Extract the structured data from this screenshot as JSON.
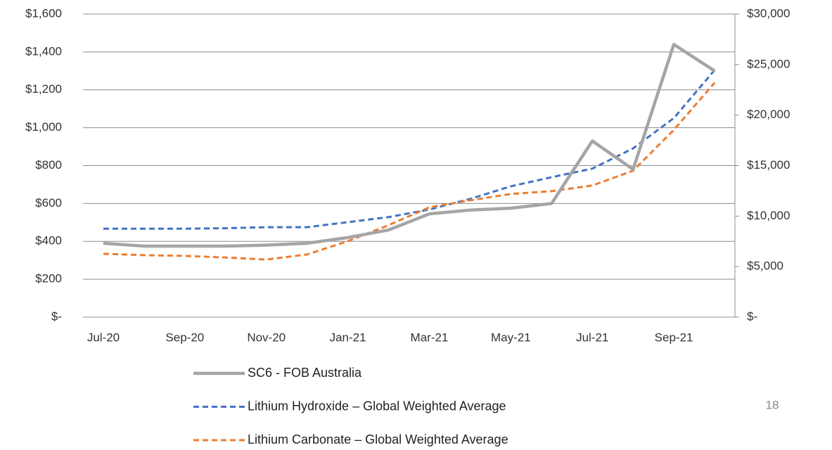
{
  "chart_data": {
    "type": "line",
    "categories": [
      "Jul-20",
      null,
      "Sep-20",
      null,
      "Nov-20",
      null,
      "Jan-21",
      null,
      "Mar-21",
      null,
      "May-21",
      null,
      "Jul-21",
      null,
      "Sep-21",
      null
    ],
    "series": [
      {
        "name": "SC6 - FOB Australia",
        "color": "#a5a5a5",
        "dash": false,
        "axis": "y",
        "values": [
          390,
          375,
          375,
          375,
          380,
          390,
          420,
          460,
          545,
          565,
          575,
          600,
          930,
          780,
          1440,
          1300
        ]
      },
      {
        "name": "Lithium Hydroxide –  Global Weighted Average",
        "color": "#4472c4",
        "dash": true,
        "axis": "y2",
        "values": [
          8750,
          8750,
          8750,
          8800,
          8900,
          8900,
          9400,
          9900,
          10650,
          11700,
          12950,
          13850,
          14700,
          16700,
          19700,
          24450
        ]
      },
      {
        "name": "Lithium Carbonate – Global Weighted Average",
        "color": "#ed7d31",
        "dash": true,
        "axis": "y2",
        "values": [
          6270,
          6130,
          6060,
          5900,
          5700,
          6200,
          7520,
          9100,
          10870,
          11560,
          12190,
          12470,
          13030,
          14490,
          18530,
          23200
        ]
      }
    ],
    "ylim": [
      0,
      1600
    ],
    "yticks": [
      {
        "value": 0,
        "label": "$-"
      },
      {
        "value": 200,
        "label": "$200"
      },
      {
        "value": 400,
        "label": "$400"
      },
      {
        "value": 600,
        "label": "$600"
      },
      {
        "value": 800,
        "label": "$800"
      },
      {
        "value": 1000,
        "label": "$1,000"
      },
      {
        "value": 1200,
        "label": "$1,200"
      },
      {
        "value": 1400,
        "label": "$1,400"
      },
      {
        "value": 1600,
        "label": "$1,600"
      }
    ],
    "y2lim": [
      0,
      30000
    ],
    "y2ticks": [
      {
        "value": 0,
        "label": "$-"
      },
      {
        "value": 5000,
        "label": "$5,000"
      },
      {
        "value": 10000,
        "label": "$10,000"
      },
      {
        "value": 15000,
        "label": "$15,000"
      },
      {
        "value": 20000,
        "label": "$20,000"
      },
      {
        "value": 25000,
        "label": "$25,000"
      },
      {
        "value": 30000,
        "label": "$30,000"
      }
    ],
    "grid": true,
    "legend": "bottom"
  },
  "page_number": "18"
}
